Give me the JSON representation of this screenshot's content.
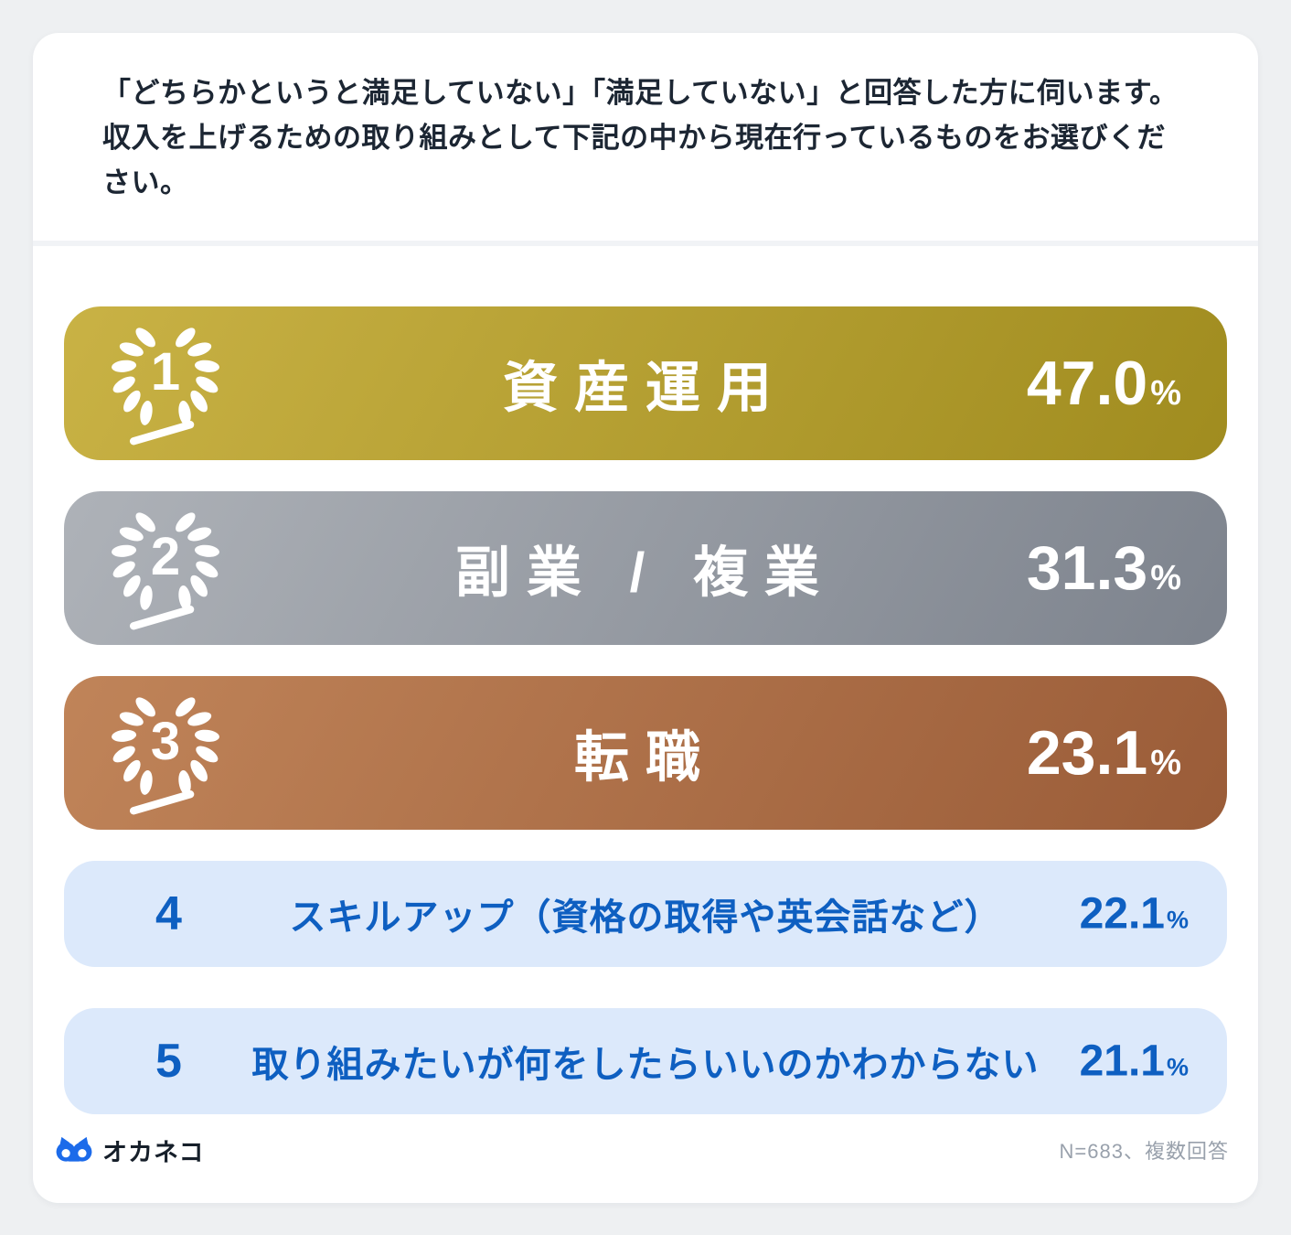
{
  "question": "「どちらかというと満足していない」「満足していない」と回答した方に伺います。収入を上げるための取り組みとして下記の中から現在行っているものをお選びください。",
  "unit": "%",
  "rankings": [
    {
      "rank": "1",
      "label": "資産運用",
      "value": "47.0"
    },
    {
      "rank": "2",
      "label": "副業 / 複業",
      "value": "31.3"
    },
    {
      "rank": "3",
      "label": "転職",
      "value": "23.1"
    },
    {
      "rank": "4",
      "label": "スキルアップ（資格の取得や英会話など）",
      "value": "22.1"
    },
    {
      "rank": "5",
      "label": "取り組みたいが何をしたらいいのかわからない",
      "value": "21.1"
    }
  ],
  "footer": {
    "brand": "オカネコ",
    "note": "N=683、複数回答"
  },
  "colors": {
    "gold_light": "#c9b245",
    "gold_dark": "#a08c1f",
    "silver_light": "#aeb2b8",
    "silver_dark": "#7d838d",
    "bronze_light": "#c08459",
    "bronze_dark": "#9a5c38",
    "rank45_bg": "#dce9fb",
    "rank45_text": "#0e5fc1",
    "brand_blue": "#1c6bea",
    "page_bg": "#eef0f2"
  },
  "chart_data": {
    "type": "bar",
    "title": "「どちらかというと満足していない」「満足していない」と回答した方に伺います。収入を上げるための取り組みとして下記の中から現在行っているものをお選びください。",
    "categories": [
      "資産運用",
      "副業 / 複業",
      "転職",
      "スキルアップ（資格の取得や英会話など）",
      "取り組みたいが何をしたらいいのかわからない"
    ],
    "values": [
      47.0,
      31.3,
      23.1,
      22.1,
      21.1
    ],
    "unit": "%",
    "note": "N=683、複数回答",
    "layout": "horizontal ranking list, equal-width rounded bars, ranks 1-3 medal colored (gold/silver/bronze), ranks 4-5 light blue"
  }
}
